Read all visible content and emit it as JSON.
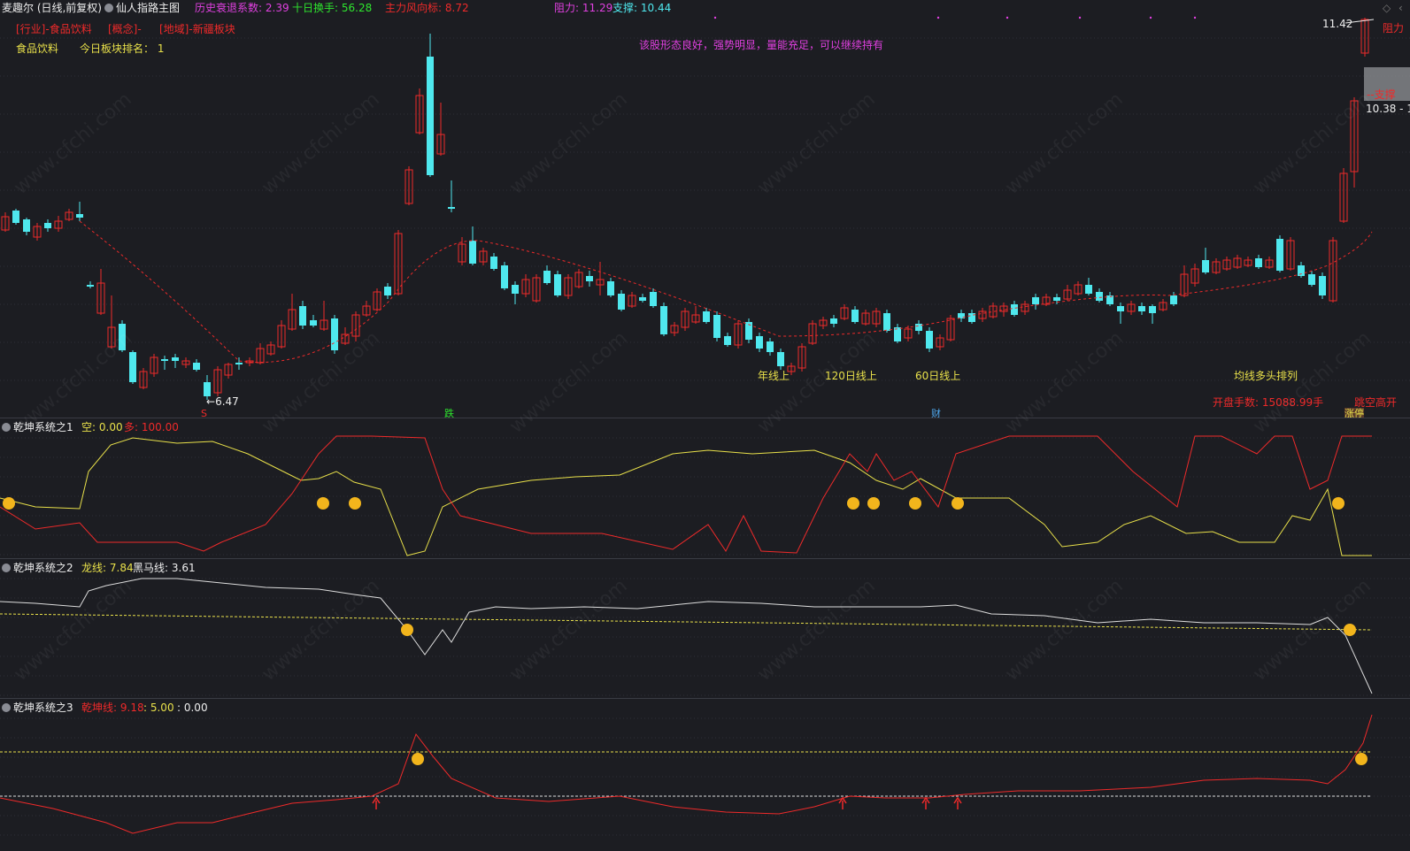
{
  "header": {
    "stock_title": "麦趣尔 (日线,前复权)",
    "indicator_name": "仙人指路主图",
    "history_label": "历史衰退系数:",
    "history_value": "2.39",
    "turnover_label": "十日换手:",
    "turnover_value": "56.28",
    "mainforce_label": "主力风向标:",
    "mainforce_value": "8.72",
    "resist_label": "阻力:",
    "resist_value": "11.29",
    "support_label": "支撑:",
    "support_value": "10.44"
  },
  "sector": {
    "industry": "[行业]-食品饮料",
    "concept": "[概念]-",
    "region": "[地域]-新疆板块",
    "sector_name": "食品饮料",
    "rank_label": "今日板块排名：",
    "rank_value": "1"
  },
  "main_chart": {
    "comment": "该股形态良好，强势明显，量能充足，可以继续持有",
    "price_high_label": "11.42",
    "resist_tag": "阻力",
    "support_tag": "--支撑",
    "support_price": "10.38 - 1",
    "low_label": "6.47",
    "annotations": [
      "年线上",
      "120日线上",
      "60日线上",
      "均线多头排列"
    ],
    "marker_s": "S",
    "marker_die": "跌",
    "marker_cai": "财",
    "open_volume": "开盘手数: 15088.99手",
    "gap_up": "跳空高开",
    "limit_up": "涨停"
  },
  "panel1": {
    "title": "乾坤系统之1",
    "kong_label": "空:",
    "kong_value": "0.00",
    "duo_label": "多:",
    "duo_value": "100.00"
  },
  "panel2": {
    "title": "乾坤系统之2",
    "dragon_label": "龙线:",
    "dragon_value": "7.84",
    "horse_label": "黑马线:",
    "horse_value": "3.61"
  },
  "panel3": {
    "title": "乾坤系统之3",
    "qk_label": "乾坤线:",
    "qk_value": "9.18",
    "v2": ": 5.00",
    "v3": ": 0.00"
  },
  "watermark": "www.cfchi.com",
  "colors": {
    "bg": "#1c1d22",
    "up": "#ee2a2a",
    "down": "#4fe8ee",
    "yellow": "#e8e04a",
    "magenta": "#e040e0",
    "green": "#2ee62e"
  }
}
